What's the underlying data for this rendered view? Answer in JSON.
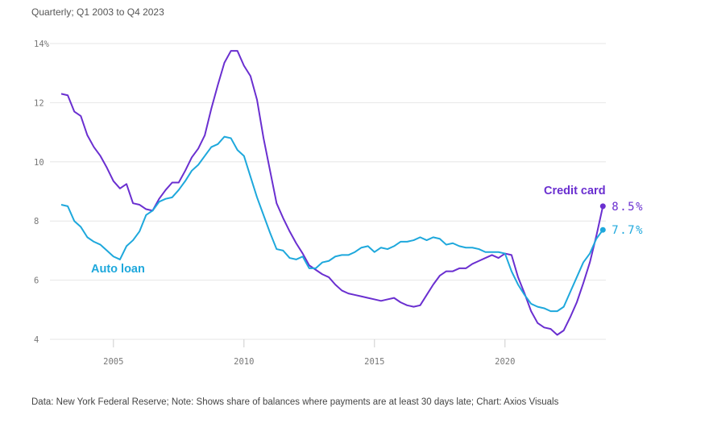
{
  "subtitle": "Quarterly; Q1 2003 to Q4 2023",
  "source": "Data: New York Federal Reserve; Note: Shows share of balances where payments are at least 30 days late; Chart: Axios Visuals",
  "chart_data": {
    "type": "line",
    "title": "",
    "subtitle": "Quarterly; Q1 2003 to Q4 2023",
    "xlabel": "",
    "ylabel": "",
    "x_start": 2003,
    "x_step": 0.25,
    "xlim": [
      2003,
      2023.75
    ],
    "ylim": [
      4,
      14
    ],
    "x_ticks": [
      2005,
      2010,
      2015,
      2020
    ],
    "x_tick_labels": [
      "2005",
      "2010",
      "2015",
      "2020"
    ],
    "y_ticks": [
      4,
      6,
      8,
      10,
      12,
      14
    ],
    "y_tick_labels": [
      "4",
      "6",
      "8",
      "10",
      "12",
      "14%"
    ],
    "grid": true,
    "series": [
      {
        "name": "Credit card",
        "color": "#6a2fd0",
        "end_label": "8.5%",
        "values": [
          12.3,
          12.25,
          11.7,
          11.55,
          10.9,
          10.5,
          10.2,
          9.8,
          9.35,
          9.1,
          9.25,
          8.6,
          8.55,
          8.4,
          8.35,
          8.75,
          9.05,
          9.3,
          9.3,
          9.7,
          10.15,
          10.45,
          10.9,
          11.8,
          12.6,
          13.35,
          13.75,
          13.75,
          13.25,
          12.9,
          12.1,
          10.8,
          9.7,
          8.6,
          8.1,
          7.65,
          7.25,
          6.9,
          6.5,
          6.35,
          6.2,
          6.1,
          5.85,
          5.65,
          5.55,
          5.5,
          5.45,
          5.4,
          5.35,
          5.3,
          5.35,
          5.4,
          5.25,
          5.15,
          5.1,
          5.15,
          5.5,
          5.85,
          6.15,
          6.3,
          6.3,
          6.4,
          6.4,
          6.55,
          6.65,
          6.75,
          6.85,
          6.75,
          6.9,
          6.85,
          6.1,
          5.55,
          4.95,
          4.55,
          4.4,
          4.35,
          4.15,
          4.3,
          4.75,
          5.25,
          5.9,
          6.6,
          7.5,
          8.5
        ]
      },
      {
        "name": "Auto loan",
        "color": "#1ea8dc",
        "end_label": "7.7%",
        "values": [
          8.55,
          8.5,
          8.0,
          7.8,
          7.45,
          7.3,
          7.2,
          7.0,
          6.8,
          6.7,
          7.15,
          7.35,
          7.65,
          8.2,
          8.35,
          8.65,
          8.75,
          8.8,
          9.05,
          9.35,
          9.7,
          9.9,
          10.2,
          10.5,
          10.6,
          10.85,
          10.8,
          10.4,
          10.2,
          9.5,
          8.8,
          8.2,
          7.6,
          7.05,
          7.0,
          6.75,
          6.7,
          6.8,
          6.4,
          6.4,
          6.6,
          6.65,
          6.8,
          6.85,
          6.85,
          6.95,
          7.1,
          7.15,
          6.95,
          7.1,
          7.05,
          7.15,
          7.3,
          7.3,
          7.35,
          7.45,
          7.35,
          7.45,
          7.4,
          7.2,
          7.25,
          7.15,
          7.1,
          7.1,
          7.05,
          6.95,
          6.95,
          6.95,
          6.9,
          6.3,
          5.85,
          5.5,
          5.2,
          5.1,
          5.05,
          4.95,
          4.95,
          5.1,
          5.6,
          6.1,
          6.6,
          6.9,
          7.4,
          7.7
        ]
      }
    ]
  }
}
